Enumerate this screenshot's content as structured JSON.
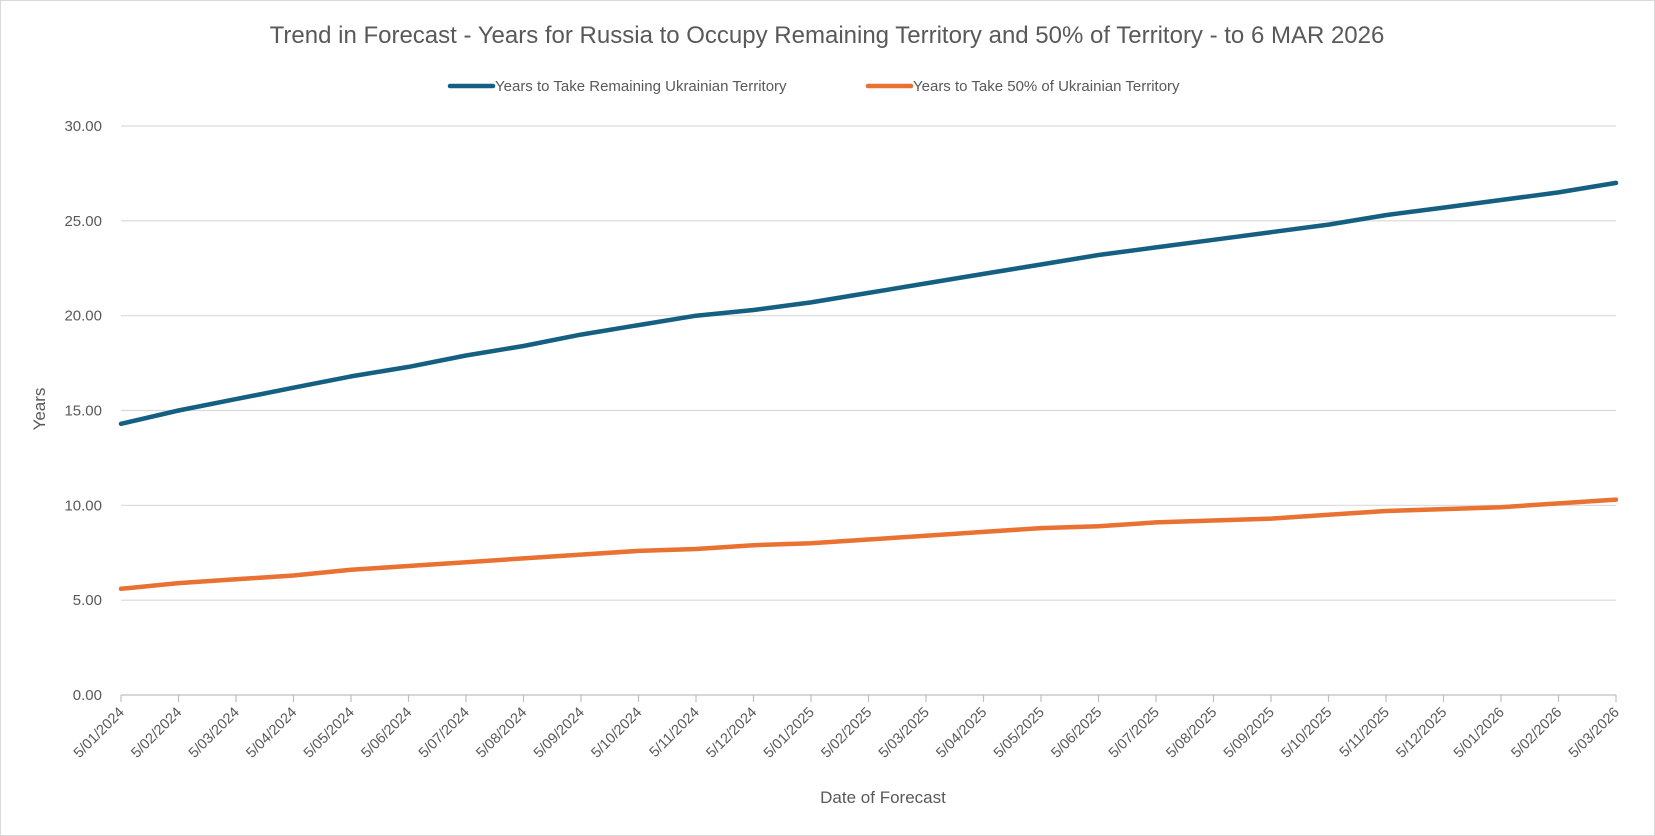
{
  "chart_data": {
    "type": "line",
    "title": "Trend in Forecast - Years for Russia to Occupy Remaining Territory and 50% of Territory - to 6 MAR 2026",
    "xlabel": "Date of Forecast",
    "ylabel": "Years",
    "ylim": [
      0,
      30
    ],
    "y_ticks": [
      "0.00",
      "5.00",
      "10.00",
      "15.00",
      "20.00",
      "25.00",
      "30.00"
    ],
    "grid": true,
    "legend_position": "top",
    "categories": [
      "5/01/2024",
      "5/02/2024",
      "5/03/2024",
      "5/04/2024",
      "5/05/2024",
      "5/06/2024",
      "5/07/2024",
      "5/08/2024",
      "5/09/2024",
      "5/10/2024",
      "5/11/2024",
      "5/12/2024",
      "5/01/2025",
      "5/02/2025",
      "5/03/2025",
      "5/04/2025",
      "5/05/2025",
      "5/06/2025",
      "5/07/2025",
      "5/08/2025",
      "5/09/2025",
      "5/10/2025",
      "5/11/2025",
      "5/12/2025",
      "5/01/2026",
      "5/02/2026",
      "5/03/2026"
    ],
    "series": [
      {
        "name": "Years to Take Remaining Ukrainian Territory",
        "color": "#156082",
        "values": [
          14.3,
          15.0,
          15.6,
          16.2,
          16.8,
          17.3,
          17.9,
          18.4,
          19.0,
          19.5,
          20.0,
          20.3,
          20.7,
          21.2,
          21.7,
          22.2,
          22.7,
          23.2,
          23.6,
          24.0,
          24.4,
          24.8,
          25.3,
          25.7,
          26.1,
          26.5,
          27.0
        ]
      },
      {
        "name": "Years to Take  50% of Ukrainian Territory",
        "color": "#E97132",
        "values": [
          5.6,
          5.9,
          6.1,
          6.3,
          6.6,
          6.8,
          7.0,
          7.2,
          7.4,
          7.6,
          7.7,
          7.9,
          8.0,
          8.2,
          8.4,
          8.6,
          8.8,
          8.9,
          9.1,
          9.2,
          9.3,
          9.5,
          9.7,
          9.8,
          9.9,
          10.1,
          10.3
        ]
      }
    ]
  }
}
